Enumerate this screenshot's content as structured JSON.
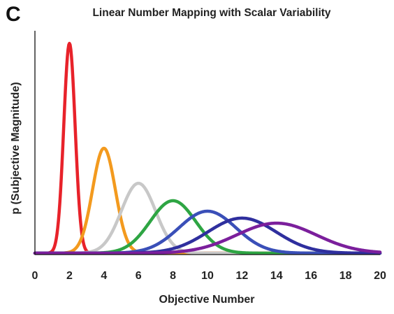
{
  "chart_data": {
    "type": "line",
    "panel_label": "C",
    "title": "Linear Number Mapping with Scalar Variability",
    "xlabel": "Objective Number",
    "ylabel": "p (Subjective Magnitude)",
    "xlim": [
      0,
      20
    ],
    "ylim": [
      0,
      1.0
    ],
    "xticks": [
      0,
      2,
      4,
      6,
      8,
      10,
      12,
      14,
      16,
      18,
      20
    ],
    "yticks": [],
    "grid": false,
    "legend": "none",
    "series": [
      {
        "mean": 2,
        "sd": 0.33,
        "peak": 1.0,
        "color": "#e8222a"
      },
      {
        "mean": 4,
        "sd": 0.66,
        "peak": 0.5,
        "color": "#f39a1e"
      },
      {
        "mean": 6,
        "sd": 0.99,
        "peak": 0.333,
        "color": "#c8c8c8"
      },
      {
        "mean": 8,
        "sd": 1.32,
        "peak": 0.25,
        "color": "#2ea543"
      },
      {
        "mean": 10,
        "sd": 1.65,
        "peak": 0.2,
        "color": "#3a4fb8"
      },
      {
        "mean": 12,
        "sd": 1.98,
        "peak": 0.167,
        "color": "#2f2f9e"
      },
      {
        "mean": 14,
        "sd": 2.31,
        "peak": 0.143,
        "color": "#7b1f9c"
      }
    ]
  }
}
